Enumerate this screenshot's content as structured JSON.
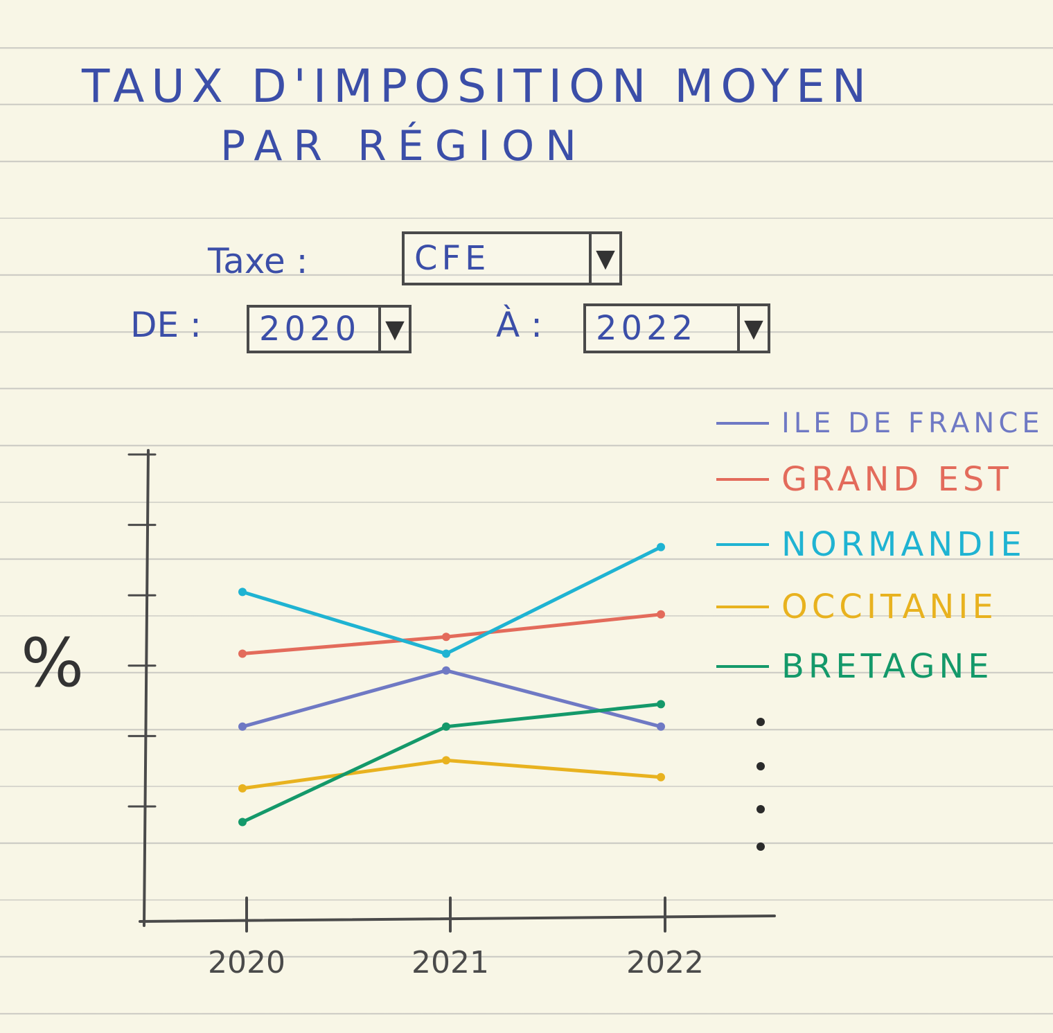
{
  "header": {
    "title_line1": "TAUX D'IMPOSITION MOYEN",
    "title_line2": "PAR RÉGION"
  },
  "filters": {
    "tax_label": "Taxe :",
    "tax_value": "CFE",
    "from_label": "DE :",
    "from_value": "2020",
    "to_label": "À :",
    "to_value": "2022"
  },
  "colors": {
    "ile_de_france": "#6f79c4",
    "grand_est": "#e36b5b",
    "normandie": "#1fb3d2",
    "occitanie": "#e8b21f",
    "bretagne": "#14996a",
    "ink": "#3b4ea8",
    "axis": "#4a4a4a"
  },
  "legend": {
    "items": [
      {
        "label": "ILE DE FRANCE",
        "color": "#6f79c4"
      },
      {
        "label": "GRAND EST",
        "color": "#e36b5b"
      },
      {
        "label": "NORMANDIE",
        "color": "#1fb3d2"
      },
      {
        "label": "OCCITANIE",
        "color": "#e8b21f"
      },
      {
        "label": "BRETAGNE",
        "color": "#14996a"
      }
    ],
    "has_more": true
  },
  "chart_data": {
    "type": "line",
    "title": "TAUX D'IMPOSITION MOYEN PAR RÉGION",
    "xlabel": "",
    "ylabel": "%",
    "x": [
      "2020",
      "2021",
      "2022"
    ],
    "ylim": [
      0,
      8
    ],
    "yticks_count": 6,
    "grid": false,
    "legend_position": "top-right",
    "series": [
      {
        "name": "ILE DE FRANCE",
        "color": "#6f79c4",
        "values": [
          3.2,
          4.2,
          3.2
        ]
      },
      {
        "name": "GRAND EST",
        "color": "#e36b5b",
        "values": [
          4.5,
          4.8,
          5.2
        ]
      },
      {
        "name": "NORMANDIE",
        "color": "#1fb3d2",
        "values": [
          5.6,
          4.5,
          6.4
        ]
      },
      {
        "name": "OCCITANIE",
        "color": "#e8b21f",
        "values": [
          2.1,
          2.6,
          2.3
        ]
      },
      {
        "name": "BRETAGNE",
        "color": "#14996a",
        "values": [
          1.5,
          3.2,
          3.6
        ]
      }
    ]
  }
}
